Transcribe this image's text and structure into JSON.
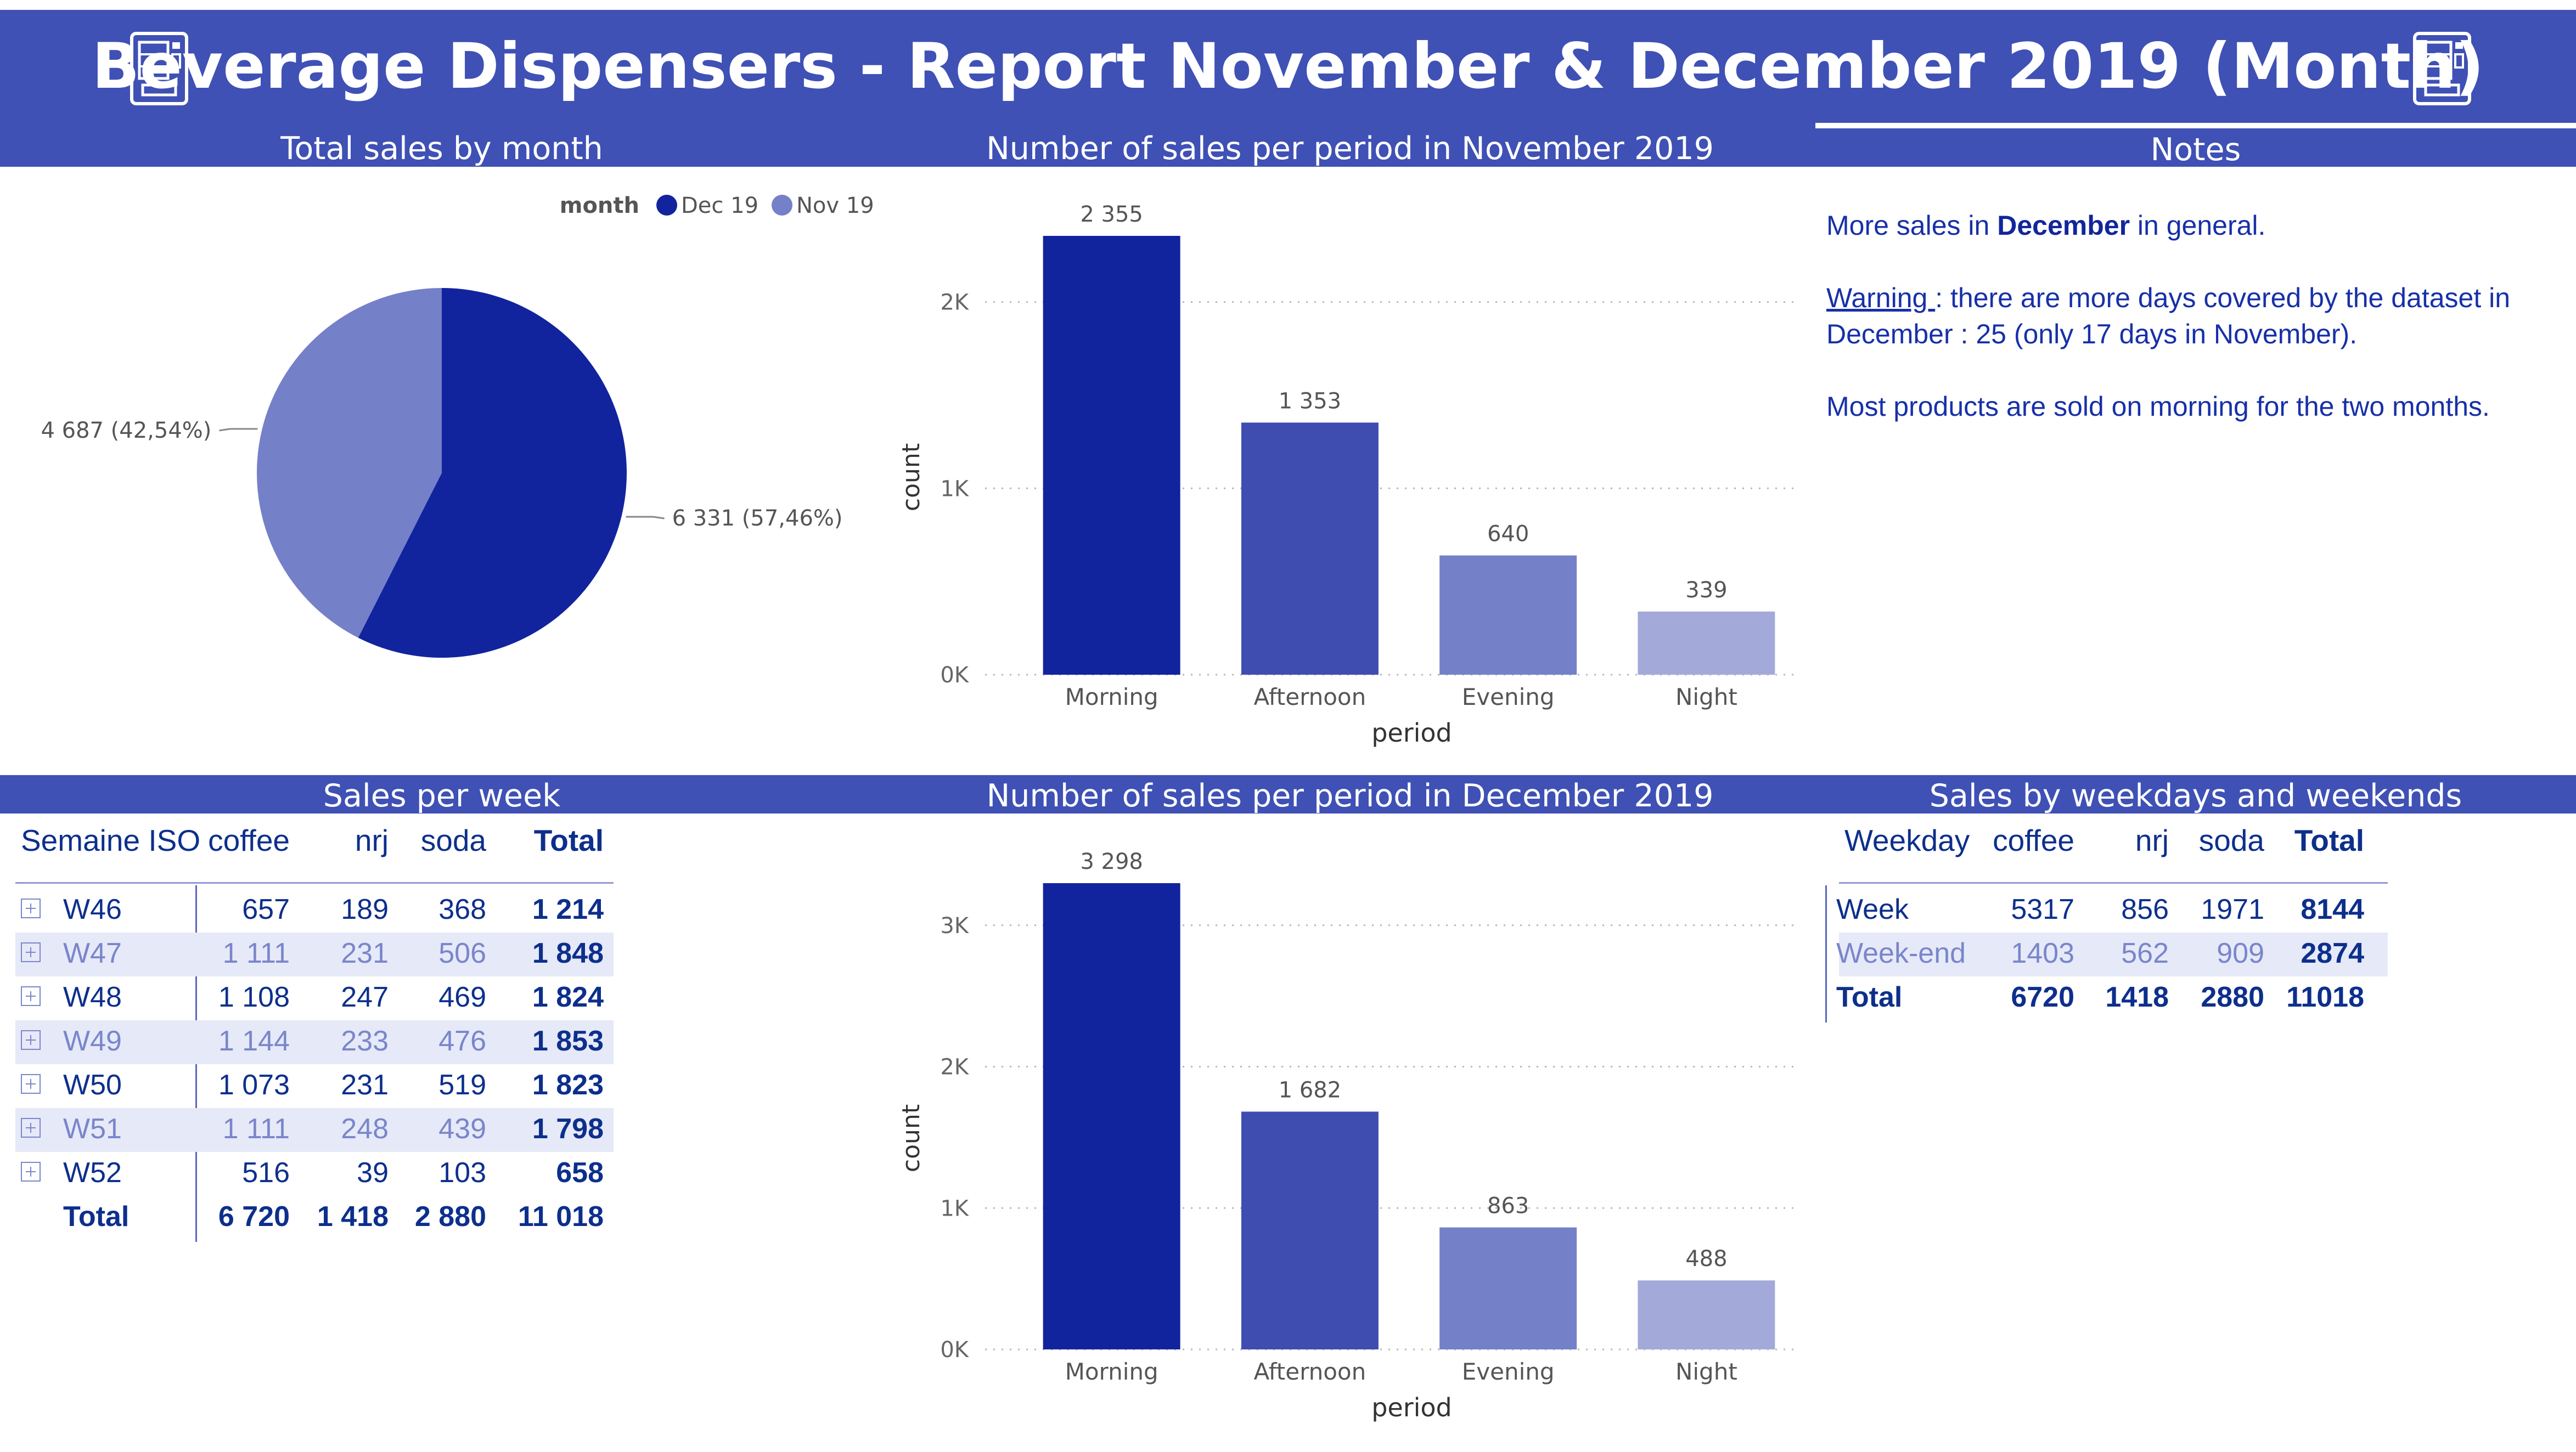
{
  "header": {
    "title": "Beverage Dispensers - Report November & December 2019 (Month)",
    "left_icon": "vending-machine-icon",
    "right_icon": "vending-machine-icon"
  },
  "colors": {
    "banner": "#3F51B5",
    "dec": "#12239E",
    "nov": "#7480C8",
    "bar_shades": [
      "#12239E",
      "#3F4DB1",
      "#7480C8",
      "#A3AAD9"
    ],
    "table_text": "#0D2F8C"
  },
  "sections": {
    "pie_title": "Total sales by month",
    "nov_title": "Number of sales per period in November 2019",
    "notes_title": "Notes",
    "week_title": "Sales per week",
    "dec_title": "Number of sales per period in December 2019",
    "weekday_title": "Sales by weekdays and weekends"
  },
  "chart_data": [
    {
      "type": "pie",
      "title": "Total sales by month",
      "legend_title": "month",
      "legend_position": "top-right",
      "slices": [
        {
          "name": "Dec 19",
          "value": 6331,
          "label": "6 331 (57,46%)",
          "color": "#12239E"
        },
        {
          "name": "Nov 19",
          "value": 4687,
          "label": "4 687 (42,54%)",
          "color": "#7480C8"
        }
      ]
    },
    {
      "type": "bar",
      "title": "Number of sales per period in November 2019",
      "categories": [
        "Morning",
        "Afternoon",
        "Evening",
        "Night"
      ],
      "values": [
        2355,
        1353,
        640,
        339
      ],
      "value_labels": [
        "2 355",
        "1 353",
        "640",
        "339"
      ],
      "xlabel": "period",
      "ylabel": "count",
      "ylim": [
        0,
        2355
      ],
      "yticks": [
        0,
        1000,
        2000
      ],
      "ytick_labels": [
        "0K",
        "1K",
        "2K"
      ],
      "grid": true
    },
    {
      "type": "bar",
      "title": "Number of sales per period in December 2019",
      "categories": [
        "Morning",
        "Afternoon",
        "Evening",
        "Night"
      ],
      "values": [
        3298,
        1682,
        863,
        488
      ],
      "value_labels": [
        "3 298",
        "1 682",
        "863",
        "488"
      ],
      "xlabel": "period",
      "ylabel": "count",
      "ylim": [
        0,
        3298
      ],
      "yticks": [
        0,
        1000,
        2000,
        3000
      ],
      "ytick_labels": [
        "0K",
        "1K",
        "2K",
        "3K"
      ],
      "grid": true
    },
    {
      "type": "table",
      "title": "Sales per week",
      "columns": [
        "Semaine ISO",
        "coffee",
        "nrj",
        "soda",
        "Total"
      ],
      "rows": [
        [
          "W46",
          "657",
          "189",
          "368",
          "1 214"
        ],
        [
          "W47",
          "1 111",
          "231",
          "506",
          "1 848"
        ],
        [
          "W48",
          "1 108",
          "247",
          "469",
          "1 824"
        ],
        [
          "W49",
          "1 144",
          "233",
          "476",
          "1 853"
        ],
        [
          "W50",
          "1 073",
          "231",
          "519",
          "1 823"
        ],
        [
          "W51",
          "1 111",
          "248",
          "439",
          "1 798"
        ],
        [
          "W52",
          "516",
          "39",
          "103",
          "658"
        ]
      ],
      "total": [
        "Total",
        "6 720",
        "1 418",
        "2 880",
        "11 018"
      ]
    },
    {
      "type": "table",
      "title": "Sales by weekdays and weekends",
      "columns": [
        "Weekday",
        "coffee",
        "nrj",
        "soda",
        "Total"
      ],
      "rows": [
        [
          "Week",
          "5317",
          "856",
          "1971",
          "8144"
        ],
        [
          "Week-end",
          "1403",
          "562",
          "909",
          "2874"
        ]
      ],
      "total": [
        "Total",
        "6720",
        "1418",
        "2880",
        "11018"
      ]
    }
  ],
  "notes": {
    "p1_a": "More sales in ",
    "p1_b": "December",
    "p1_c": " in general.",
    "p2_a": "Warning ",
    "p2_b": ": there are more days covered by the dataset in December : 25 (only 17 days in November).",
    "p3": "Most products are sold on morning for the two months."
  }
}
